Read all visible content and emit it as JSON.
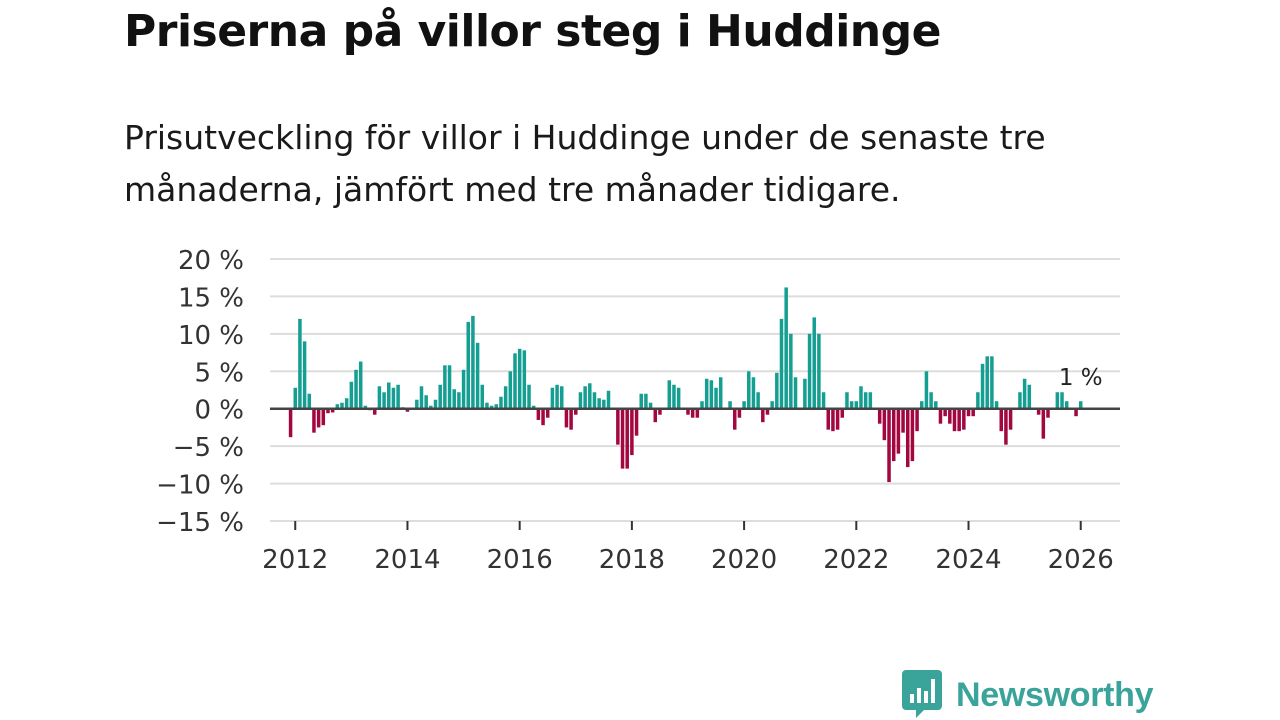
{
  "title": "Priserna på villor steg i Huddinge",
  "subtitle": "Prisutveckling för villor i Huddinge under de senaste tre månaderna, jämfört med tre månader tidigare.",
  "logo": {
    "text": "Newsworthy"
  },
  "colors": {
    "positive": "#159f92",
    "negative": "#a3073f",
    "grid": "#dddddd",
    "zero_line": "#444444",
    "brand": "#3aa39a"
  },
  "chart_data": {
    "type": "bar",
    "title": "Priserna på villor steg i Huddinge",
    "xlabel": "",
    "ylabel": "",
    "x_start": 2011.9167,
    "x_step": 0.0833333,
    "xlim": [
      2011.55,
      2026.7
    ],
    "ylim": [
      -15,
      20
    ],
    "y_ticks": [
      20,
      15,
      10,
      5,
      0,
      -5,
      -10,
      -15
    ],
    "y_tick_labels": [
      "20 %",
      "15 %",
      "10 %",
      "5 %",
      "0 %",
      "−5 %",
      "−10 %",
      "−15 %"
    ],
    "x_ticks": [
      2012,
      2014,
      2016,
      2018,
      2020,
      2022,
      2024,
      2026
    ],
    "x_tick_labels": [
      "2012",
      "2014",
      "2016",
      "2018",
      "2020",
      "2022",
      "2024",
      "2026"
    ],
    "annotation": {
      "text": "1 %",
      "value": 1
    },
    "values": [
      -3.8,
      2.8,
      12,
      9,
      2,
      -3.2,
      -2.5,
      -2.2,
      -0.6,
      -0.5,
      0.6,
      0.8,
      1.4,
      3.6,
      5.2,
      6.3,
      0.4,
      -0.2,
      -0.8,
      3.0,
      2.2,
      3.5,
      2.8,
      3.2,
      0.2,
      -0.4,
      0.0,
      1.2,
      3.0,
      1.8,
      0.4,
      1.2,
      3.2,
      5.8,
      5.8,
      2.6,
      2.2,
      5.2,
      11.6,
      12.4,
      8.8,
      3.2,
      0.8,
      0.4,
      0.6,
      1.6,
      3.0,
      5.0,
      7.4,
      8.0,
      7.8,
      3.2,
      0.4,
      -1.5,
      -2.2,
      -1.2,
      2.8,
      3.2,
      3.0,
      -2.5,
      -2.8,
      -0.8,
      2.2,
      3.0,
      3.4,
      2.2,
      1.4,
      1.2,
      2.4,
      0.0,
      -4.8,
      -8.0,
      -8.0,
      -6.2,
      -3.6,
      2.0,
      2.0,
      0.8,
      -1.8,
      -0.8,
      0.0,
      3.8,
      3.2,
      2.8,
      0.0,
      -0.8,
      -1.2,
      -1.2,
      1.0,
      4.0,
      3.8,
      2.8,
      4.2,
      0.0,
      1.0,
      -2.8,
      -1.2,
      1.0,
      5.0,
      4.2,
      2.2,
      -1.8,
      -0.8,
      1.0,
      4.8,
      12.0,
      16.2,
      10.0,
      4.2,
      0.0,
      4.0,
      10.0,
      12.2,
      10.0,
      2.2,
      -2.8,
      -3.0,
      -2.8,
      -1.2,
      2.2,
      1.0,
      1.0,
      3.0,
      2.2,
      2.2,
      0.0,
      -2.0,
      -4.2,
      -9.8,
      -7.0,
      -6.0,
      -3.2,
      -7.8,
      -7.0,
      -3.0,
      1.0,
      5.0,
      2.2,
      1.0,
      -2.0,
      -1.0,
      -2.0,
      -3.0,
      -3.0,
      -2.8,
      -1.0,
      -1.0,
      2.2,
      6.0,
      7.0,
      7.0,
      1.0,
      -3.0,
      -4.8,
      -2.8,
      0.0,
      2.2,
      4.0,
      3.2,
      0.0,
      -0.8,
      -4.0,
      -1.2,
      0.0,
      2.2,
      2.2,
      1.0,
      0.0,
      -1.0,
      1.0
    ]
  }
}
